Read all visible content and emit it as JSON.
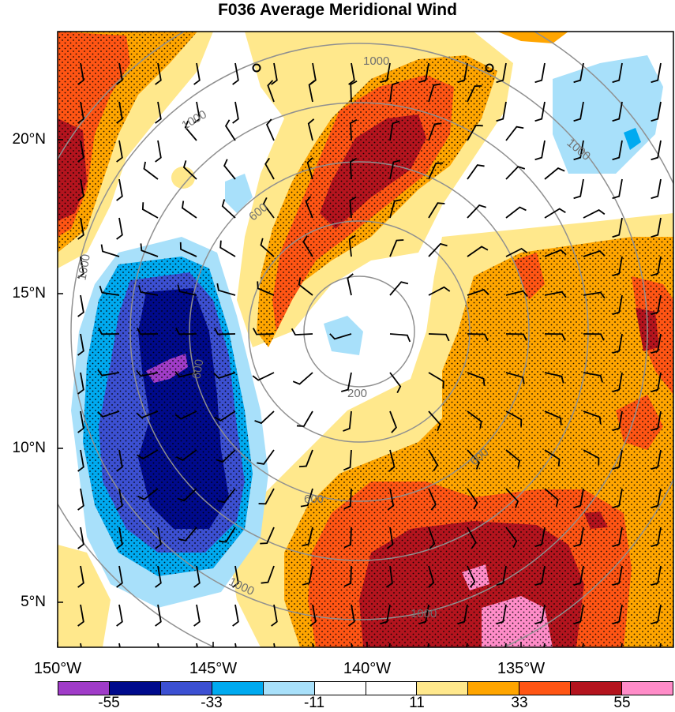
{
  "title": "F036 Average Meridional Wind",
  "lat_labels": [
    "20°N",
    "15°N",
    "10°N",
    "5°N"
  ],
  "lon_labels": [
    "150°W",
    "145°W",
    "140°W",
    "135°W"
  ],
  "range_ring_labels": [
    "200",
    "600",
    "600",
    "600",
    "600",
    "1000",
    "1000",
    "1000",
    "1000",
    "1000",
    "1000"
  ],
  "colorbar": {
    "colors": [
      "#a03cc8",
      "#000a8c",
      "#3c50d2",
      "#00aaf0",
      "#a8e0fa",
      "#ffffff",
      "#ffffff",
      "#ffe88c",
      "#ffa500",
      "#ff5514",
      "#b4141e",
      "#ff8cc8"
    ],
    "labels": [
      "-55",
      "-33",
      "-11",
      "11",
      "33",
      "55"
    ]
  },
  "map": {
    "projection": "lat-lon",
    "lat_range": [
      "3.5°N",
      "23°N"
    ],
    "lon_range": [
      "150°W",
      "131°W"
    ],
    "range_rings_km": [
      200,
      600,
      1000
    ],
    "stippling": "significant areas",
    "wind_barbs": true
  }
}
